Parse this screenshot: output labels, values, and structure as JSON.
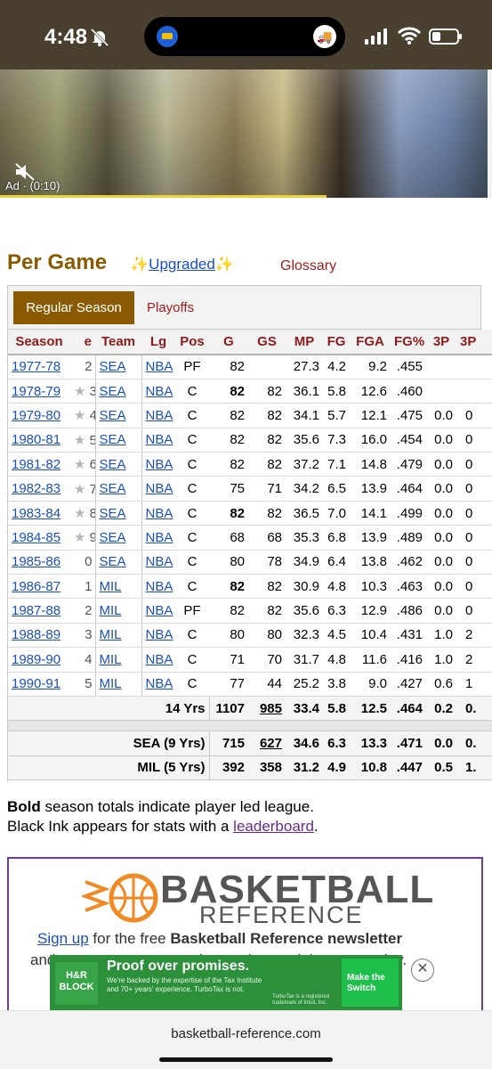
{
  "status_bar": {
    "time": "4:48"
  },
  "ad_video": {
    "label": "Ad · (0:10)",
    "progress": 0.67
  },
  "section": {
    "title": "Per Game",
    "upgraded_label": "Upgraded",
    "glossary_label": "Glossary"
  },
  "tabs": {
    "regular": "Regular Season",
    "playoffs": "Playoffs"
  },
  "table": {
    "headers": [
      "Season",
      "e",
      "Team",
      "Lg",
      "Pos",
      "G",
      "GS",
      "MP",
      "FG",
      "FGA",
      "FG%",
      "3P",
      "3P"
    ],
    "rows": [
      {
        "season": "1977-78",
        "rank": "2",
        "star": false,
        "team": "SEA",
        "lg": "NBA",
        "pos": "PF",
        "g": "82",
        "g_bold": false,
        "gs": "",
        "mp": "27.3",
        "fg": "4.2",
        "fga": "9.2",
        "fgp": ".455",
        "p3": "",
        "p3b": ""
      },
      {
        "season": "1978-79",
        "rank": "3",
        "star": true,
        "team": "SEA",
        "lg": "NBA",
        "pos": "C",
        "g": "82",
        "g_bold": true,
        "gs": "82",
        "mp": "36.1",
        "fg": "5.8",
        "fga": "12.6",
        "fgp": ".460",
        "p3": "",
        "p3b": ""
      },
      {
        "season": "1979-80",
        "rank": "4",
        "star": true,
        "team": "SEA",
        "lg": "NBA",
        "pos": "C",
        "g": "82",
        "g_bold": false,
        "gs": "82",
        "mp": "34.1",
        "fg": "5.7",
        "fga": "12.1",
        "fgp": ".475",
        "p3": "0.0",
        "p3b": "0"
      },
      {
        "season": "1980-81",
        "rank": "5",
        "star": true,
        "team": "SEA",
        "lg": "NBA",
        "pos": "C",
        "g": "82",
        "g_bold": false,
        "gs": "82",
        "mp": "35.6",
        "fg": "7.3",
        "fga": "16.0",
        "fgp": ".454",
        "p3": "0.0",
        "p3b": "0"
      },
      {
        "season": "1981-82",
        "rank": "6",
        "star": true,
        "team": "SEA",
        "lg": "NBA",
        "pos": "C",
        "g": "82",
        "g_bold": false,
        "gs": "82",
        "mp": "37.2",
        "fg": "7.1",
        "fga": "14.8",
        "fgp": ".479",
        "p3": "0.0",
        "p3b": "0"
      },
      {
        "season": "1982-83",
        "rank": "7",
        "star": true,
        "team": "SEA",
        "lg": "NBA",
        "pos": "C",
        "g": "75",
        "g_bold": false,
        "gs": "71",
        "mp": "34.2",
        "fg": "6.5",
        "fga": "13.9",
        "fgp": ".464",
        "p3": "0.0",
        "p3b": "0"
      },
      {
        "season": "1983-84",
        "rank": "8",
        "star": true,
        "team": "SEA",
        "lg": "NBA",
        "pos": "C",
        "g": "82",
        "g_bold": true,
        "gs": "82",
        "mp": "36.5",
        "fg": "7.0",
        "fga": "14.1",
        "fgp": ".499",
        "p3": "0.0",
        "p3b": "0"
      },
      {
        "season": "1984-85",
        "rank": "9",
        "star": true,
        "team": "SEA",
        "lg": "NBA",
        "pos": "C",
        "g": "68",
        "g_bold": false,
        "gs": "68",
        "mp": "35.3",
        "fg": "6.8",
        "fga": "13.9",
        "fgp": ".489",
        "p3": "0.0",
        "p3b": "0"
      },
      {
        "season": "1985-86",
        "rank": "0",
        "star": false,
        "team": "SEA",
        "lg": "NBA",
        "pos": "C",
        "g": "80",
        "g_bold": false,
        "gs": "78",
        "mp": "34.9",
        "fg": "6.4",
        "fga": "13.8",
        "fgp": ".462",
        "p3": "0.0",
        "p3b": "0"
      },
      {
        "season": "1986-87",
        "rank": "1",
        "star": false,
        "team": "MIL",
        "lg": "NBA",
        "pos": "C",
        "g": "82",
        "g_bold": true,
        "gs": "82",
        "mp": "30.9",
        "fg": "4.8",
        "fga": "10.3",
        "fgp": ".463",
        "p3": "0.0",
        "p3b": "0"
      },
      {
        "season": "1987-88",
        "rank": "2",
        "star": false,
        "team": "MIL",
        "lg": "NBA",
        "pos": "PF",
        "g": "82",
        "g_bold": false,
        "gs": "82",
        "mp": "35.6",
        "fg": "6.3",
        "fga": "12.9",
        "fgp": ".486",
        "p3": "0.0",
        "p3b": "0"
      },
      {
        "season": "1988-89",
        "rank": "3",
        "star": false,
        "team": "MIL",
        "lg": "NBA",
        "pos": "C",
        "g": "80",
        "g_bold": false,
        "gs": "80",
        "mp": "32.3",
        "fg": "4.5",
        "fga": "10.4",
        "fgp": ".431",
        "p3": "1.0",
        "p3b": "2"
      },
      {
        "season": "1989-90",
        "rank": "4",
        "star": false,
        "team": "MIL",
        "lg": "NBA",
        "pos": "C",
        "g": "71",
        "g_bold": false,
        "gs": "70",
        "mp": "31.7",
        "fg": "4.8",
        "fga": "11.6",
        "fgp": ".416",
        "p3": "1.0",
        "p3b": "2"
      },
      {
        "season": "1990-91",
        "rank": "5",
        "star": false,
        "team": "MIL",
        "lg": "NBA",
        "pos": "C",
        "g": "77",
        "g_bold": false,
        "gs": "44",
        "mp": "25.2",
        "fg": "3.8",
        "fga": "9.0",
        "fgp": ".427",
        "p3": "0.6",
        "p3b": "1"
      }
    ],
    "totals": [
      {
        "label": "14 Yrs",
        "g": "1107",
        "gs": "985",
        "gs_underline": true,
        "mp": "33.4",
        "fg": "5.8",
        "fga": "12.5",
        "fgp": ".464",
        "p3": "0.2",
        "p3b": "0."
      },
      {
        "label": "SEA (9 Yrs)",
        "g": "715",
        "gs": "627",
        "gs_underline": true,
        "mp": "34.6",
        "fg": "6.3",
        "fga": "13.3",
        "fgp": ".471",
        "p3": "0.0",
        "p3b": "0."
      },
      {
        "label": "MIL (5 Yrs)",
        "g": "392",
        "gs": "358",
        "gs_underline": false,
        "mp": "31.2",
        "fg": "4.9",
        "fga": "10.8",
        "fgp": ".447",
        "p3": "0.5",
        "p3b": "1."
      }
    ]
  },
  "notes": {
    "bold_word": "Bold",
    "line1_rest": " season totals indicate player led league.",
    "line2_pre": "Black Ink appears for stats with a ",
    "line2_link": "leaderboard",
    "line2_post": "."
  },
  "newsletter": {
    "brand_title": "BASKETBALL",
    "brand_sub": "REFERENCE",
    "signup_link": "Sign up",
    "signup_mid": " for the free ",
    "signup_bold": "Basketball Reference newsletter",
    "cut_text": "and get scores, news and notes in your inbox every day."
  },
  "bottom_ad": {
    "logo": "H&R BLOCK",
    "headline": "Proof over promises.",
    "body": "We're backed by the expertise of the Tax Institute and 70+ years' experience. TurboTax is not.",
    "fine": "TurboTax is a registered trademark of Intuit, Inc.",
    "cta": "Make the Switch",
    "close": "✕"
  },
  "browser": {
    "url": "basketball-reference.com"
  },
  "colors": {
    "accent": "#8a5a00",
    "link": "#1b4fbf",
    "header_text": "#8a1c1c",
    "ad_green": "#2c8f3a"
  }
}
